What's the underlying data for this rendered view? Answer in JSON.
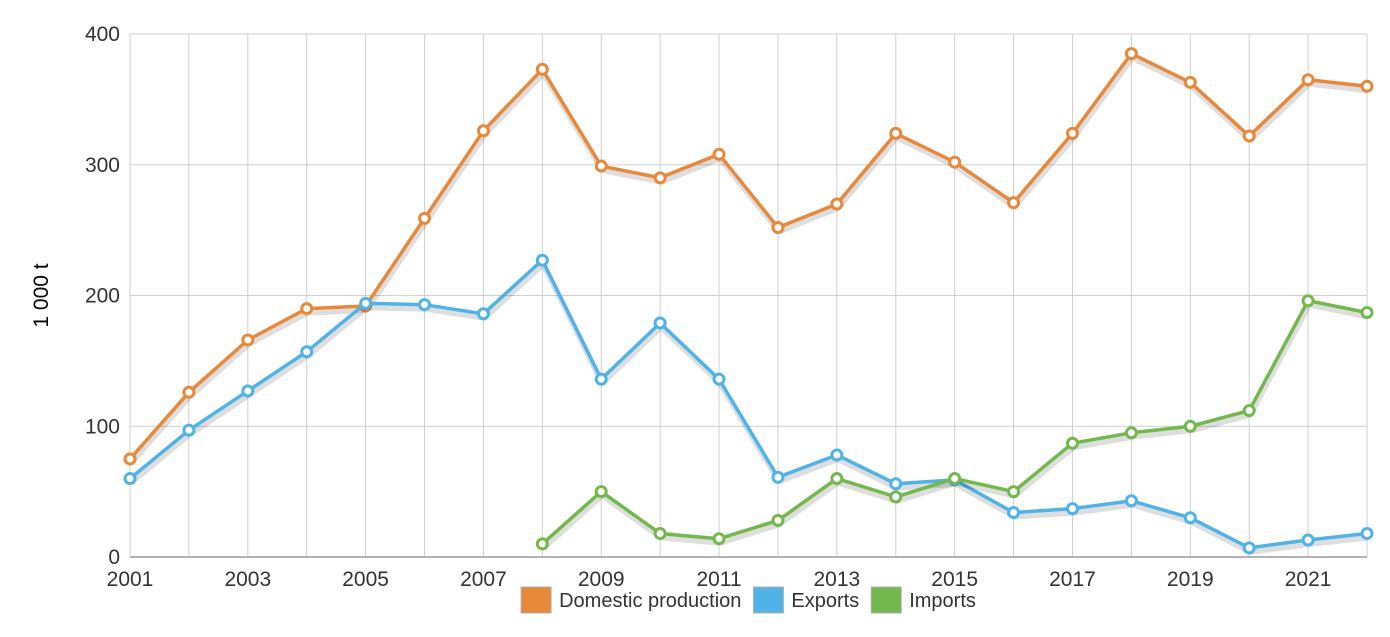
{
  "chart_data": {
    "type": "line",
    "title": "",
    "xlabel": "",
    "ylabel": "1 000 t",
    "ylim": [
      0,
      400
    ],
    "xlim": [
      2001,
      2022
    ],
    "yticks": [
      0,
      100,
      200,
      300,
      400
    ],
    "xticks": [
      2001,
      2003,
      2005,
      2007,
      2009,
      2011,
      2013,
      2015,
      2017,
      2019,
      2021
    ],
    "grid": true,
    "legend_position": "bottom",
    "x": [
      2001,
      2002,
      2003,
      2004,
      2005,
      2006,
      2007,
      2008,
      2009,
      2010,
      2011,
      2012,
      2013,
      2014,
      2015,
      2016,
      2017,
      2018,
      2019,
      2020,
      2021,
      2022
    ],
    "series": [
      {
        "name": "Domestic production",
        "color": "#e8883a",
        "values": [
          75,
          126,
          166,
          190,
          192,
          259,
          326,
          373,
          299,
          290,
          308,
          252,
          270,
          324,
          302,
          271,
          324,
          385,
          363,
          322,
          365,
          360
        ]
      },
      {
        "name": "Exports",
        "color": "#4fb3e8",
        "values": [
          60,
          97,
          127,
          157,
          194,
          193,
          186,
          227,
          136,
          179,
          136,
          61,
          78,
          56,
          59,
          34,
          37,
          43,
          30,
          7,
          13,
          18
        ]
      },
      {
        "name": "Imports",
        "color": "#72b84c",
        "values": [
          null,
          null,
          null,
          null,
          null,
          null,
          null,
          10,
          50,
          18,
          14,
          28,
          60,
          46,
          60,
          50,
          87,
          95,
          100,
          112,
          196,
          187
        ]
      }
    ]
  }
}
